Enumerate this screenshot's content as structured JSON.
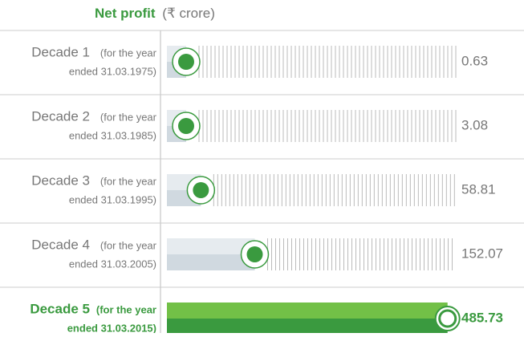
{
  "chart_data": {
    "type": "bar",
    "title": "Net profit",
    "unit": "(₹ crore)",
    "categories": [
      "Decade 1",
      "Decade 2",
      "Decade 3",
      "Decade 4",
      "Decade 5"
    ],
    "notes": [
      [
        "(for the year",
        "ended 31.03.1975)"
      ],
      [
        "(for the year",
        "ended 31.03.1985)"
      ],
      [
        "(for the year",
        "ended 31.03.1995)"
      ],
      [
        "(for the year",
        "ended 31.03.2005)"
      ],
      [
        "(for the year",
        "ended 31.03.2015)"
      ]
    ],
    "values": [
      0.63,
      3.08,
      58.81,
      152.07,
      485.73
    ],
    "xlim": [
      0,
      500
    ],
    "color": "#d0d9e0",
    "highlight": "Decade 5",
    "highlight_color": "#3a9a3f"
  }
}
